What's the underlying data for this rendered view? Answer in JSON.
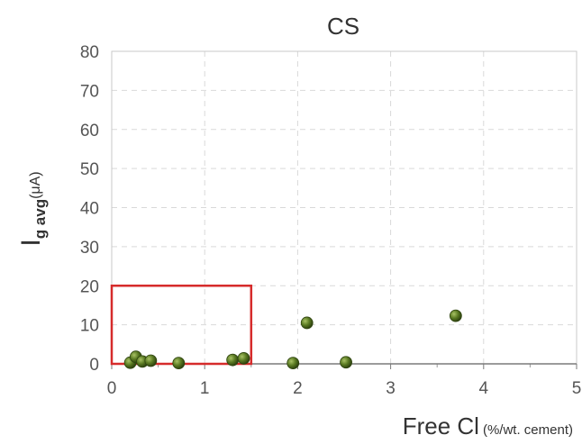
{
  "chart_data": {
    "type": "scatter",
    "title": "CS",
    "xlabel_main": "Free Cl",
    "xlabel_unit": "(%/wt. cement)",
    "ylabel_main": "I",
    "ylabel_sub": "g avg",
    "ylabel_unit": "(μA)",
    "xlim": [
      0,
      5
    ],
    "ylim": [
      0,
      80
    ],
    "xticks": [
      "0",
      "1",
      "2",
      "3",
      "4",
      "5"
    ],
    "yticks": [
      "0",
      "10",
      "20",
      "30",
      "40",
      "50",
      "60",
      "70",
      "80"
    ],
    "grid": true,
    "points": [
      {
        "x": 0.2,
        "y": 0.3
      },
      {
        "x": 0.26,
        "y": 1.8
      },
      {
        "x": 0.33,
        "y": 0.6
      },
      {
        "x": 0.42,
        "y": 0.8
      },
      {
        "x": 0.72,
        "y": 0.2
      },
      {
        "x": 1.3,
        "y": 1.0
      },
      {
        "x": 1.42,
        "y": 1.4
      },
      {
        "x": 1.95,
        "y": 0.2
      },
      {
        "x": 2.1,
        "y": 10.5
      },
      {
        "x": 2.52,
        "y": 0.4
      },
      {
        "x": 3.7,
        "y": 12.3
      }
    ],
    "highlight_box": {
      "x0": 0,
      "x1": 1.5,
      "y0": 0,
      "y1": 20,
      "color": "#d62b2b"
    },
    "marker_color": "#4e6b1c",
    "marker_highlight": "#9bb45a"
  }
}
